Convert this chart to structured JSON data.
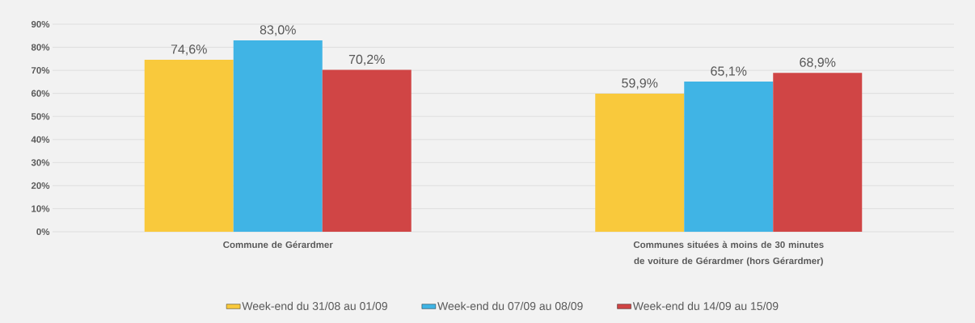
{
  "chart_data": {
    "type": "bar",
    "categories": [
      "Commune de Gérardmer",
      "Communes situées à moins de 30 minutes de voiture de Gérardmer (hors Gérardmer)"
    ],
    "series": [
      {
        "name": "Week-end du 31/08 au 01/09",
        "color": "#f9c93c",
        "values": [
          74.6,
          59.9
        ],
        "value_labels": [
          "74,6%",
          "59,9%"
        ]
      },
      {
        "name": "Week-end du 07/09 au 08/09",
        "color": "#40b4e5",
        "values": [
          83.0,
          65.1
        ],
        "value_labels": [
          "83,0%",
          "65,1%"
        ]
      },
      {
        "name": "Week-end du 14/09 au 15/09",
        "color": "#d04545",
        "values": [
          70.2,
          68.9
        ],
        "value_labels": [
          "70,2%",
          "68,9%"
        ]
      }
    ],
    "ylim": [
      0,
      90
    ],
    "yticks": [
      {
        "value": 0,
        "label": "0%"
      },
      {
        "value": 10,
        "label": "10%"
      },
      {
        "value": 20,
        "label": "20%"
      },
      {
        "value": 30,
        "label": "30%"
      },
      {
        "value": 40,
        "label": "40%"
      },
      {
        "value": 50,
        "label": "50%"
      },
      {
        "value": 60,
        "label": "60%"
      },
      {
        "value": 70,
        "label": "70%"
      },
      {
        "value": 80,
        "label": "80%"
      },
      {
        "value": 90,
        "label": "90%"
      }
    ],
    "grid": "y",
    "legend": "bottom"
  }
}
